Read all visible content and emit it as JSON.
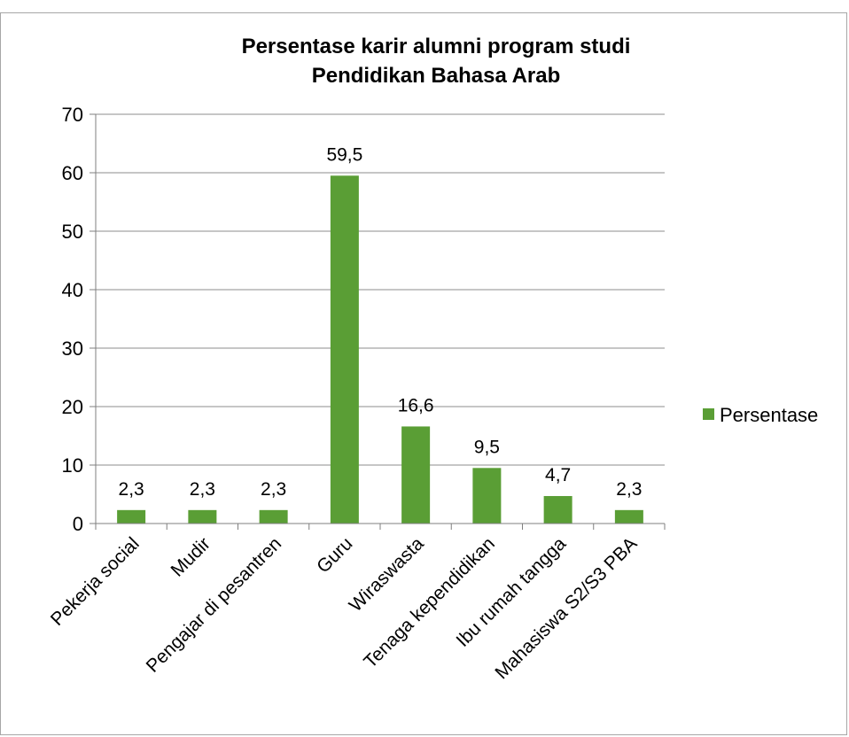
{
  "chart_data": {
    "type": "bar",
    "title_lines": [
      "Persentase karir alumni program studi",
      "Pendidikan Bahasa Arab"
    ],
    "categories": [
      "Pekerja social",
      "Mudir",
      "Pengajar di pesantren",
      "Guru",
      "Wiraswasta",
      "Tenaga kependidikan",
      "Ibu rumah tangga",
      "Mahasiswa S2/S3 PBA"
    ],
    "series": [
      {
        "name": "Persentase",
        "values": [
          2.3,
          2.3,
          2.3,
          59.5,
          16.6,
          9.5,
          4.7,
          2.3
        ],
        "labels": [
          "2,3",
          "2,3",
          "2,3",
          "59,5",
          "16,6",
          "9,5",
          "4,7",
          "2,3"
        ],
        "color": "#5a9e35"
      }
    ],
    "ylim": [
      0,
      70
    ],
    "yticks": [
      0,
      10,
      20,
      30,
      40,
      50,
      60,
      70
    ],
    "grid": true,
    "legend_position": "right"
  }
}
